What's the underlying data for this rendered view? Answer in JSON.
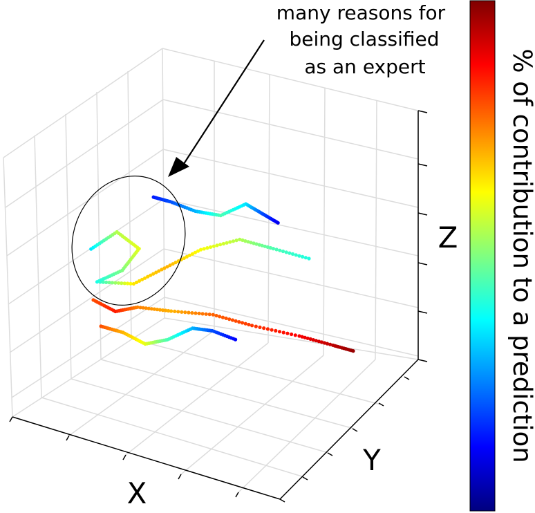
{
  "chart_data": {
    "type": "scatter",
    "projection": "3d",
    "title": "",
    "xlabel": "X",
    "ylabel": "Y",
    "zlabel": "Z",
    "tick_labels_shown": false,
    "grid": true,
    "colorbar": {
      "label": "% of contribution to a prediction",
      "colormap": "jet",
      "position": "right",
      "colors": [
        "#00007f",
        "#0000ff",
        "#0080ff",
        "#00ffff",
        "#80ff80",
        "#ffff00",
        "#ff8000",
        "#ff0000",
        "#7f0000"
      ]
    },
    "annotation": {
      "lines": [
        "many reasons for",
        "being classified",
        "as an expert"
      ],
      "target": "circled cluster of trajectory points"
    },
    "series": [
      {
        "points": [
          [
            0.18,
            0.2,
            0.62,
            0.35
          ],
          [
            0.22,
            0.3,
            0.66,
            0.55
          ],
          [
            0.28,
            0.34,
            0.6,
            0.6
          ],
          [
            0.24,
            0.3,
            0.52,
            0.5
          ],
          [
            0.18,
            0.24,
            0.48,
            0.4
          ],
          [
            0.26,
            0.34,
            0.46,
            0.65
          ],
          [
            0.34,
            0.42,
            0.52,
            0.7
          ],
          [
            0.42,
            0.5,
            0.58,
            0.62
          ],
          [
            0.52,
            0.58,
            0.62,
            0.55
          ],
          [
            0.6,
            0.66,
            0.58,
            0.45
          ],
          [
            0.7,
            0.74,
            0.54,
            0.4
          ]
        ]
      },
      {
        "points": [
          [
            0.2,
            0.18,
            0.44,
            0.8
          ],
          [
            0.26,
            0.22,
            0.4,
            0.85
          ],
          [
            0.32,
            0.26,
            0.42,
            0.75
          ],
          [
            0.4,
            0.34,
            0.4,
            0.7
          ],
          [
            0.5,
            0.44,
            0.38,
            0.78
          ],
          [
            0.6,
            0.52,
            0.34,
            0.82
          ],
          [
            0.72,
            0.62,
            0.3,
            0.88
          ],
          [
            0.8,
            0.7,
            0.26,
            0.94
          ],
          [
            0.86,
            0.74,
            0.24,
            0.98
          ]
        ]
      },
      {
        "points": [
          [
            0.3,
            0.4,
            0.78,
            0.15
          ],
          [
            0.34,
            0.44,
            0.76,
            0.2
          ],
          [
            0.4,
            0.5,
            0.72,
            0.3
          ],
          [
            0.46,
            0.56,
            0.7,
            0.45
          ],
          [
            0.52,
            0.62,
            0.74,
            0.35
          ],
          [
            0.56,
            0.66,
            0.7,
            0.2
          ],
          [
            0.6,
            0.7,
            0.66,
            0.1
          ]
        ]
      },
      {
        "points": [
          [
            0.24,
            0.16,
            0.36,
            0.8
          ],
          [
            0.3,
            0.2,
            0.34,
            0.7
          ],
          [
            0.36,
            0.24,
            0.3,
            0.6
          ],
          [
            0.42,
            0.28,
            0.32,
            0.45
          ],
          [
            0.48,
            0.34,
            0.36,
            0.3
          ],
          [
            0.52,
            0.4,
            0.34,
            0.2
          ],
          [
            0.58,
            0.46,
            0.3,
            0.12
          ]
        ]
      }
    ]
  }
}
